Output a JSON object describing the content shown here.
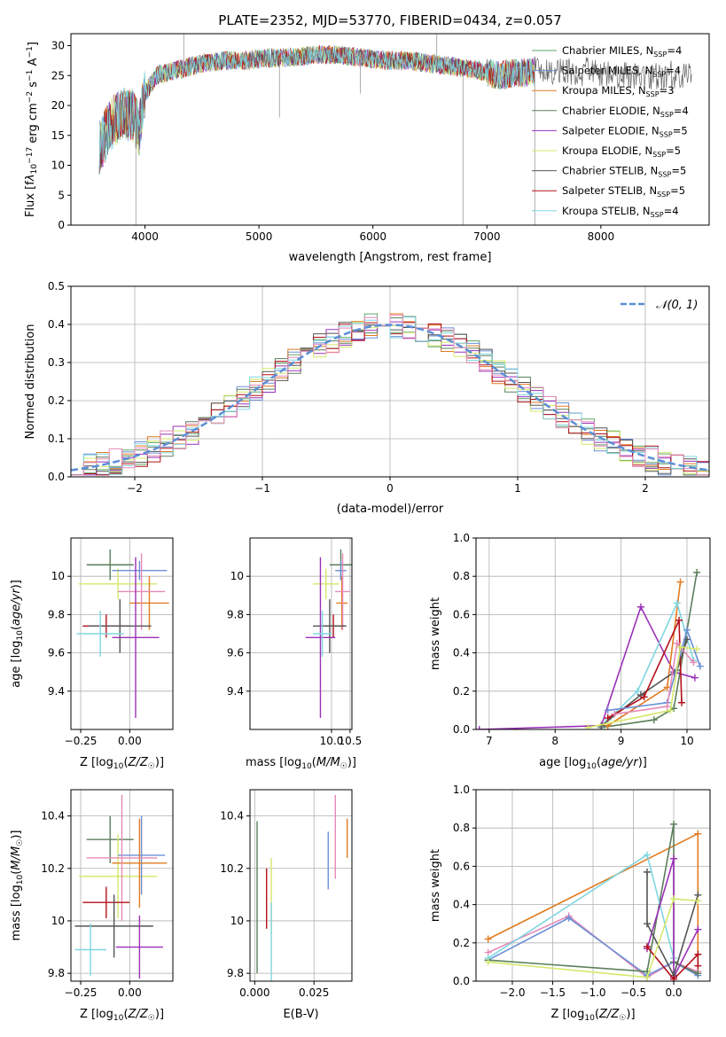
{
  "page_title": "PLATE=2352, MJD=53770, FIBERID=0434, z=0.057",
  "colors": {
    "chab_miles": "#5ea66a",
    "salp_miles": "#6b8fd6",
    "krou_miles": "#e07b22",
    "chab_elodie": "#5b7f5b",
    "salp_elodie": "#9b30b8",
    "krou_elodie": "#d4e86a",
    "chab_stelib": "#555555",
    "salp_stelib": "#b3101a",
    "krou_stelib": "#7fd6e0",
    "extra_pink": "#e68ab8",
    "gauss": "#5b8fd6"
  },
  "legend": [
    {
      "label": "Chabrier MILES, N",
      "sub": "SSP",
      "tail": "=4",
      "color": "#5ea66a"
    },
    {
      "label": "Salpeter MILES, N",
      "sub": "SSP",
      "tail": "=4",
      "color": "#6b8fd6"
    },
    {
      "label": "Kroupa MILES, N",
      "sub": "SSP",
      "tail": "=3",
      "color": "#e07b22"
    },
    {
      "label": "Chabrier ELODIE, N",
      "sub": "SSP",
      "tail": "=4",
      "color": "#5b7f5b"
    },
    {
      "label": "Salpeter ELODIE, N",
      "sub": "SSP",
      "tail": "=5",
      "color": "#9b30b8"
    },
    {
      "label": "Kroupa ELODIE, N",
      "sub": "SSP",
      "tail": "=5",
      "color": "#d4e86a"
    },
    {
      "label": "Chabrier STELIB, N",
      "sub": "SSP",
      "tail": "=5",
      "color": "#555555"
    },
    {
      "label": "Salpeter STELIB, N",
      "sub": "SSP",
      "tail": "=5",
      "color": "#b3101a"
    },
    {
      "label": "Kroupa STELIB, N",
      "sub": "SSP",
      "tail": "=4",
      "color": "#7fd6e0"
    }
  ],
  "chart_data": [
    {
      "id": "spectrum",
      "type": "line",
      "xlabel": "wavelength [Angstrom, rest frame]",
      "ylabel_parts": [
        "Flux [f",
        "λ",
        "10",
        "−17",
        " erg cm",
        "−2",
        " s",
        "−1",
        " A",
        "−1",
        "]"
      ],
      "xlim": [
        3350,
        8950
      ],
      "ylim": [
        0,
        32
      ],
      "xticks": [
        4000,
        5000,
        6000,
        7000,
        8000
      ],
      "yticks": [
        0,
        5,
        10,
        15,
        20,
        25,
        30
      ],
      "continuum": [
        [
          3600,
          13
        ],
        [
          3700,
          17
        ],
        [
          3800,
          19
        ],
        [
          3900,
          18
        ],
        [
          3950,
          16
        ],
        [
          4000,
          22
        ],
        [
          4100,
          25
        ],
        [
          4300,
          26
        ],
        [
          4500,
          27
        ],
        [
          4700,
          27.5
        ],
        [
          4900,
          27.5
        ],
        [
          5100,
          28
        ],
        [
          5300,
          28
        ],
        [
          5500,
          28.5
        ],
        [
          5700,
          28.5
        ],
        [
          5900,
          28
        ],
        [
          6100,
          27.5
        ],
        [
          6300,
          27.5
        ],
        [
          6500,
          27
        ],
        [
          6700,
          26.5
        ],
        [
          6900,
          26
        ],
        [
          7100,
          25
        ],
        [
          7300,
          25.5
        ],
        [
          7500,
          26
        ],
        [
          7700,
          26
        ],
        [
          7900,
          25.5
        ],
        [
          8100,
          25
        ],
        [
          8300,
          25
        ],
        [
          8500,
          25
        ],
        [
          8800,
          25
        ]
      ],
      "spikes": [
        [
          3920,
          0
        ],
        [
          4340,
          32
        ],
        [
          4380,
          25
        ],
        [
          5180,
          18
        ],
        [
          5890,
          22
        ],
        [
          6560,
          32
        ],
        [
          6790,
          0
        ],
        [
          7420,
          0
        ]
      ]
    },
    {
      "id": "residuals",
      "type": "bar",
      "xlabel": "(data-model)/error",
      "ylabel": "Normed distribution",
      "xlim": [
        -2.5,
        2.5
      ],
      "ylim": [
        0,
        0.5
      ],
      "xticks": [
        -2,
        -1,
        0,
        1,
        2
      ],
      "yticks": [
        0.0,
        0.1,
        0.2,
        0.3,
        0.4,
        0.5
      ],
      "xtick_labels": [
        "−2",
        "−1",
        "0",
        "1",
        "2"
      ],
      "bin_width": 0.1,
      "bins_from": -2.5,
      "legend": "𝒩(0, 1)"
    },
    {
      "id": "age_vs_z",
      "type": "scatter",
      "xlabel_parts": [
        "Z [log",
        "10",
        "(",
        "Z/Z",
        "☉",
        ")]"
      ],
      "ylabel_parts": [
        "age  [log",
        "10",
        "(",
        "age/yr",
        ")]"
      ],
      "xlim": [
        -0.3,
        0.22
      ],
      "ylim": [
        9.2,
        10.2
      ],
      "xticks": [
        -0.25,
        0.0
      ],
      "xtick_labels": [
        "−0.25",
        "0.00"
      ],
      "yticks": [
        9.4,
        9.6,
        9.8,
        10.0
      ],
      "points": [
        {
          "x": -0.1,
          "y": 10.06,
          "xerr": 0.12,
          "yerr": 0.08,
          "c": "#5b7f5b"
        },
        {
          "x": -0.06,
          "y": 9.96,
          "xerr": 0.2,
          "yerr": 0.08,
          "c": "#d4e86a"
        },
        {
          "x": 0.05,
          "y": 10.03,
          "xerr": 0.14,
          "yerr": 0.05,
          "c": "#6b8fd6"
        },
        {
          "x": 0.1,
          "y": 9.86,
          "xerr": 0.1,
          "yerr": 0.14,
          "c": "#e07b22"
        },
        {
          "x": 0.06,
          "y": 9.92,
          "xerr": 0.12,
          "yerr": 0.2,
          "c": "#e68ab8"
        },
        {
          "x": -0.12,
          "y": 9.74,
          "xerr": 0.12,
          "yerr": 0.06,
          "c": "#b3101a"
        },
        {
          "x": -0.05,
          "y": 9.74,
          "xerr": 0.16,
          "yerr": 0.14,
          "c": "#555555"
        },
        {
          "x": 0.03,
          "y": 9.68,
          "xerr": 0.12,
          "yerr": 0.42,
          "c": "#9b30b8"
        },
        {
          "x": -0.15,
          "y": 9.7,
          "xerr": 0.12,
          "yerr": 0.12,
          "c": "#7fd6e0"
        }
      ]
    },
    {
      "id": "age_vs_mass",
      "type": "scatter",
      "xlabel_parts": [
        "mass [log",
        "10",
        "(",
        "M/M",
        "☉",
        ")]"
      ],
      "ylabel_parts": [],
      "xlim": [
        7.8,
        10.55
      ],
      "ylim": [
        9.2,
        10.2
      ],
      "xticks": [
        10.0,
        10.5
      ],
      "xtick_labels": [
        "10.0",
        "10.5"
      ],
      "yticks": [
        9.4,
        9.6,
        9.8,
        10.0
      ],
      "points": [
        {
          "x": 10.25,
          "y": 10.06,
          "xerr": 0.3,
          "yerr": 0.08,
          "c": "#5b7f5b"
        },
        {
          "x": 9.85,
          "y": 9.96,
          "xerr": 0.35,
          "yerr": 0.08,
          "c": "#d4e86a"
        },
        {
          "x": 10.25,
          "y": 10.03,
          "xerr": 0.15,
          "yerr": 0.05,
          "c": "#6b8fd6"
        },
        {
          "x": 10.28,
          "y": 9.86,
          "xerr": 0.15,
          "yerr": 0.14,
          "c": "#e07b22"
        },
        {
          "x": 10.3,
          "y": 9.92,
          "xerr": 0.2,
          "yerr": 0.2,
          "c": "#e68ab8"
        },
        {
          "x": 10.05,
          "y": 9.74,
          "xerr": 0.3,
          "yerr": 0.06,
          "c": "#b3101a"
        },
        {
          "x": 9.95,
          "y": 9.74,
          "xerr": 0.45,
          "yerr": 0.14,
          "c": "#555555"
        },
        {
          "x": 9.7,
          "y": 9.68,
          "xerr": 0.4,
          "yerr": 0.42,
          "c": "#9b30b8"
        },
        {
          "x": 9.75,
          "y": 9.7,
          "xerr": 0.25,
          "yerr": 0.12,
          "c": "#7fd6e0"
        }
      ]
    },
    {
      "id": "weight_vs_age",
      "type": "line",
      "xlabel_parts": [
        "age  [log",
        "10",
        "(",
        "age/yr",
        ")]"
      ],
      "ylabel": "mass weight",
      "xlim": [
        6.8,
        10.35
      ],
      "ylim": [
        0,
        1.0
      ],
      "xticks": [
        7,
        8,
        9,
        10
      ],
      "yticks": [
        0.0,
        0.2,
        0.4,
        0.6,
        0.8,
        1.0
      ],
      "series": [
        {
          "c": "#5b7f5b",
          "pts": [
            [
              8.7,
              0.01
            ],
            [
              9.5,
              0.05
            ],
            [
              9.8,
              0.11
            ],
            [
              10.15,
              0.82
            ]
          ]
        },
        {
          "c": "#9b30b8",
          "pts": [
            [
              6.85,
              0.0
            ],
            [
              8.7,
              0.02
            ],
            [
              9.3,
              0.64
            ],
            [
              9.8,
              0.3
            ],
            [
              10.12,
              0.27
            ]
          ]
        },
        {
          "c": "#e07b22",
          "pts": [
            [
              8.8,
              0.02
            ],
            [
              9.7,
              0.22
            ],
            [
              9.9,
              0.77
            ]
          ]
        },
        {
          "c": "#7fd6e0",
          "pts": [
            [
              8.8,
              0.05
            ],
            [
              9.25,
              0.2
            ],
            [
              9.85,
              0.66
            ],
            [
              10.1,
              0.36
            ]
          ]
        },
        {
          "c": "#555555",
          "pts": [
            [
              8.7,
              0.02
            ],
            [
              9.3,
              0.18
            ],
            [
              9.85,
              0.31
            ],
            [
              10.0,
              0.47
            ]
          ]
        },
        {
          "c": "#b3101a",
          "pts": [
            [
              8.8,
              0.06
            ],
            [
              9.35,
              0.17
            ],
            [
              9.88,
              0.57
            ],
            [
              9.92,
              0.14
            ]
          ]
        },
        {
          "c": "#6b8fd6",
          "pts": [
            [
              8.8,
              0.1
            ],
            [
              9.7,
              0.14
            ],
            [
              10.0,
              0.52
            ],
            [
              10.2,
              0.33
            ]
          ]
        },
        {
          "c": "#e68ab8",
          "pts": [
            [
              8.9,
              0.08
            ],
            [
              9.7,
              0.12
            ],
            [
              9.85,
              0.45
            ],
            [
              10.1,
              0.35
            ]
          ]
        },
        {
          "c": "#d4e86a",
          "pts": [
            [
              8.5,
              0.01
            ],
            [
              9.75,
              0.1
            ],
            [
              9.9,
              0.43
            ],
            [
              10.15,
              0.42
            ]
          ]
        }
      ]
    },
    {
      "id": "mass_vs_z",
      "type": "scatter",
      "xlabel_parts": [
        "Z [log",
        "10",
        "(",
        "Z/Z",
        "☉",
        ")]"
      ],
      "ylabel_parts": [
        "mass [log",
        "10",
        "(",
        "M/M",
        "☉",
        ")]"
      ],
      "xlim": [
        -0.3,
        0.22
      ],
      "ylim": [
        9.77,
        10.5
      ],
      "xticks": [
        -0.25,
        0.0
      ],
      "xtick_labels": [
        "−0.25",
        "0.00"
      ],
      "yticks": [
        9.8,
        10.0,
        10.2,
        10.4
      ],
      "points": [
        {
          "x": -0.1,
          "y": 10.31,
          "xerr": 0.12,
          "yerr": 0.09,
          "c": "#5b7f5b"
        },
        {
          "x": -0.06,
          "y": 10.17,
          "xerr": 0.2,
          "yerr": 0.16,
          "c": "#d4e86a"
        },
        {
          "x": 0.06,
          "y": 10.25,
          "xerr": 0.12,
          "yerr": 0.15,
          "c": "#6b8fd6"
        },
        {
          "x": 0.05,
          "y": 10.22,
          "xerr": 0.14,
          "yerr": 0.17,
          "c": "#e07b22"
        },
        {
          "x": -0.04,
          "y": 10.24,
          "xerr": 0.18,
          "yerr": 0.24,
          "c": "#e68ab8"
        },
        {
          "x": -0.12,
          "y": 10.07,
          "xerr": 0.12,
          "yerr": 0.06,
          "c": "#b3101a"
        },
        {
          "x": -0.08,
          "y": 9.98,
          "xerr": 0.2,
          "yerr": 0.12,
          "c": "#555555"
        },
        {
          "x": 0.05,
          "y": 9.9,
          "xerr": 0.12,
          "yerr": 0.12,
          "c": "#9b30b8"
        },
        {
          "x": -0.2,
          "y": 9.89,
          "xerr": 0.08,
          "yerr": 0.1,
          "c": "#7fd6e0"
        }
      ]
    },
    {
      "id": "mass_vs_ebv",
      "type": "scatter",
      "xlabel": "E(B-V)",
      "ylabel_parts": [],
      "xlim": [
        -0.002,
        0.041
      ],
      "ylim": [
        9.77,
        10.5
      ],
      "xticks": [
        0.0,
        0.025
      ],
      "xtick_labels": [
        "0.000",
        "0.025"
      ],
      "yticks": [
        9.8,
        10.0,
        10.2,
        10.4
      ],
      "bars": [
        {
          "x": 0.001,
          "lo": 9.8,
          "hi": 10.38,
          "c": "#5b7f5b"
        },
        {
          "x": 0.007,
          "lo": 9.95,
          "hi": 10.24,
          "c": "#d4e86a"
        },
        {
          "x": 0.007,
          "lo": 9.77,
          "hi": 10.07,
          "c": "#7fd6e0"
        },
        {
          "x": 0.005,
          "lo": 9.97,
          "hi": 10.2,
          "c": "#b3101a"
        },
        {
          "x": 0.031,
          "lo": 10.12,
          "hi": 10.34,
          "c": "#6b8fd6"
        },
        {
          "x": 0.034,
          "lo": 10.16,
          "hi": 10.48,
          "c": "#e68ab8"
        },
        {
          "x": 0.039,
          "lo": 10.24,
          "hi": 10.39,
          "c": "#e07b22"
        }
      ]
    },
    {
      "id": "weight_vs_z",
      "type": "line",
      "xlabel_parts": [
        "Z [log",
        "10",
        "(",
        "Z/Z",
        "☉",
        ")]"
      ],
      "ylabel": "mass weight",
      "xlim": [
        -2.45,
        0.45
      ],
      "ylim": [
        0,
        1.0
      ],
      "xticks": [
        -2.0,
        -1.5,
        -1.0,
        -0.5,
        0.0
      ],
      "xtick_labels": [
        "−2.0",
        "−1.5",
        "−1.0",
        "−0.5",
        "0.0"
      ],
      "yticks": [
        0.0,
        0.2,
        0.4,
        0.6,
        0.8,
        1.0
      ],
      "series": [
        {
          "c": "#e07b22",
          "pts": [
            [
              -2.3,
              0.22
            ],
            [
              0.3,
              0.77
            ],
            [
              0.3,
              0.05
            ]
          ]
        },
        {
          "c": "#e68ab8",
          "pts": [
            [
              -2.3,
              0.15
            ],
            [
              -1.3,
              0.34
            ],
            [
              -0.33,
              0.02
            ],
            [
              0.0,
              0.1
            ],
            [
              0.3,
              0.05
            ]
          ]
        },
        {
          "c": "#6b8fd6",
          "pts": [
            [
              -2.3,
              0.11
            ],
            [
              -1.3,
              0.33
            ],
            [
              -0.33,
              0.03
            ],
            [
              0.0,
              0.1
            ],
            [
              0.3,
              0.03
            ]
          ]
        },
        {
          "c": "#5b7f5b",
          "pts": [
            [
              -2.3,
              0.11
            ],
            [
              -0.33,
              0.05
            ],
            [
              0.0,
              0.82
            ],
            [
              0.0,
              0.1
            ],
            [
              0.3,
              0.04
            ]
          ]
        },
        {
          "c": "#7fd6e0",
          "pts": [
            [
              -2.3,
              0.12
            ],
            [
              -0.33,
              0.66
            ],
            [
              0.0,
              0.12
            ]
          ]
        },
        {
          "c": "#9b30b8",
          "pts": [
            [
              -0.33,
              0.17
            ],
            [
              0.0,
              0.64
            ],
            [
              0.0,
              0.02
            ],
            [
              0.3,
              0.27
            ]
          ]
        },
        {
          "c": "#555555",
          "pts": [
            [
              -0.33,
              0.57
            ],
            [
              -0.33,
              0.3
            ],
            [
              0.0,
              0.03
            ],
            [
              0.3,
              0.45
            ]
          ]
        },
        {
          "c": "#b3101a",
          "pts": [
            [
              -0.33,
              0.18
            ],
            [
              0.0,
              0.01
            ],
            [
              0.3,
              0.14
            ],
            [
              0.3,
              0.08
            ]
          ]
        },
        {
          "c": "#d4e86a",
          "pts": [
            [
              -2.3,
              0.1
            ],
            [
              -0.33,
              0.02
            ],
            [
              0.0,
              0.43
            ],
            [
              0.3,
              0.42
            ]
          ]
        }
      ]
    }
  ]
}
